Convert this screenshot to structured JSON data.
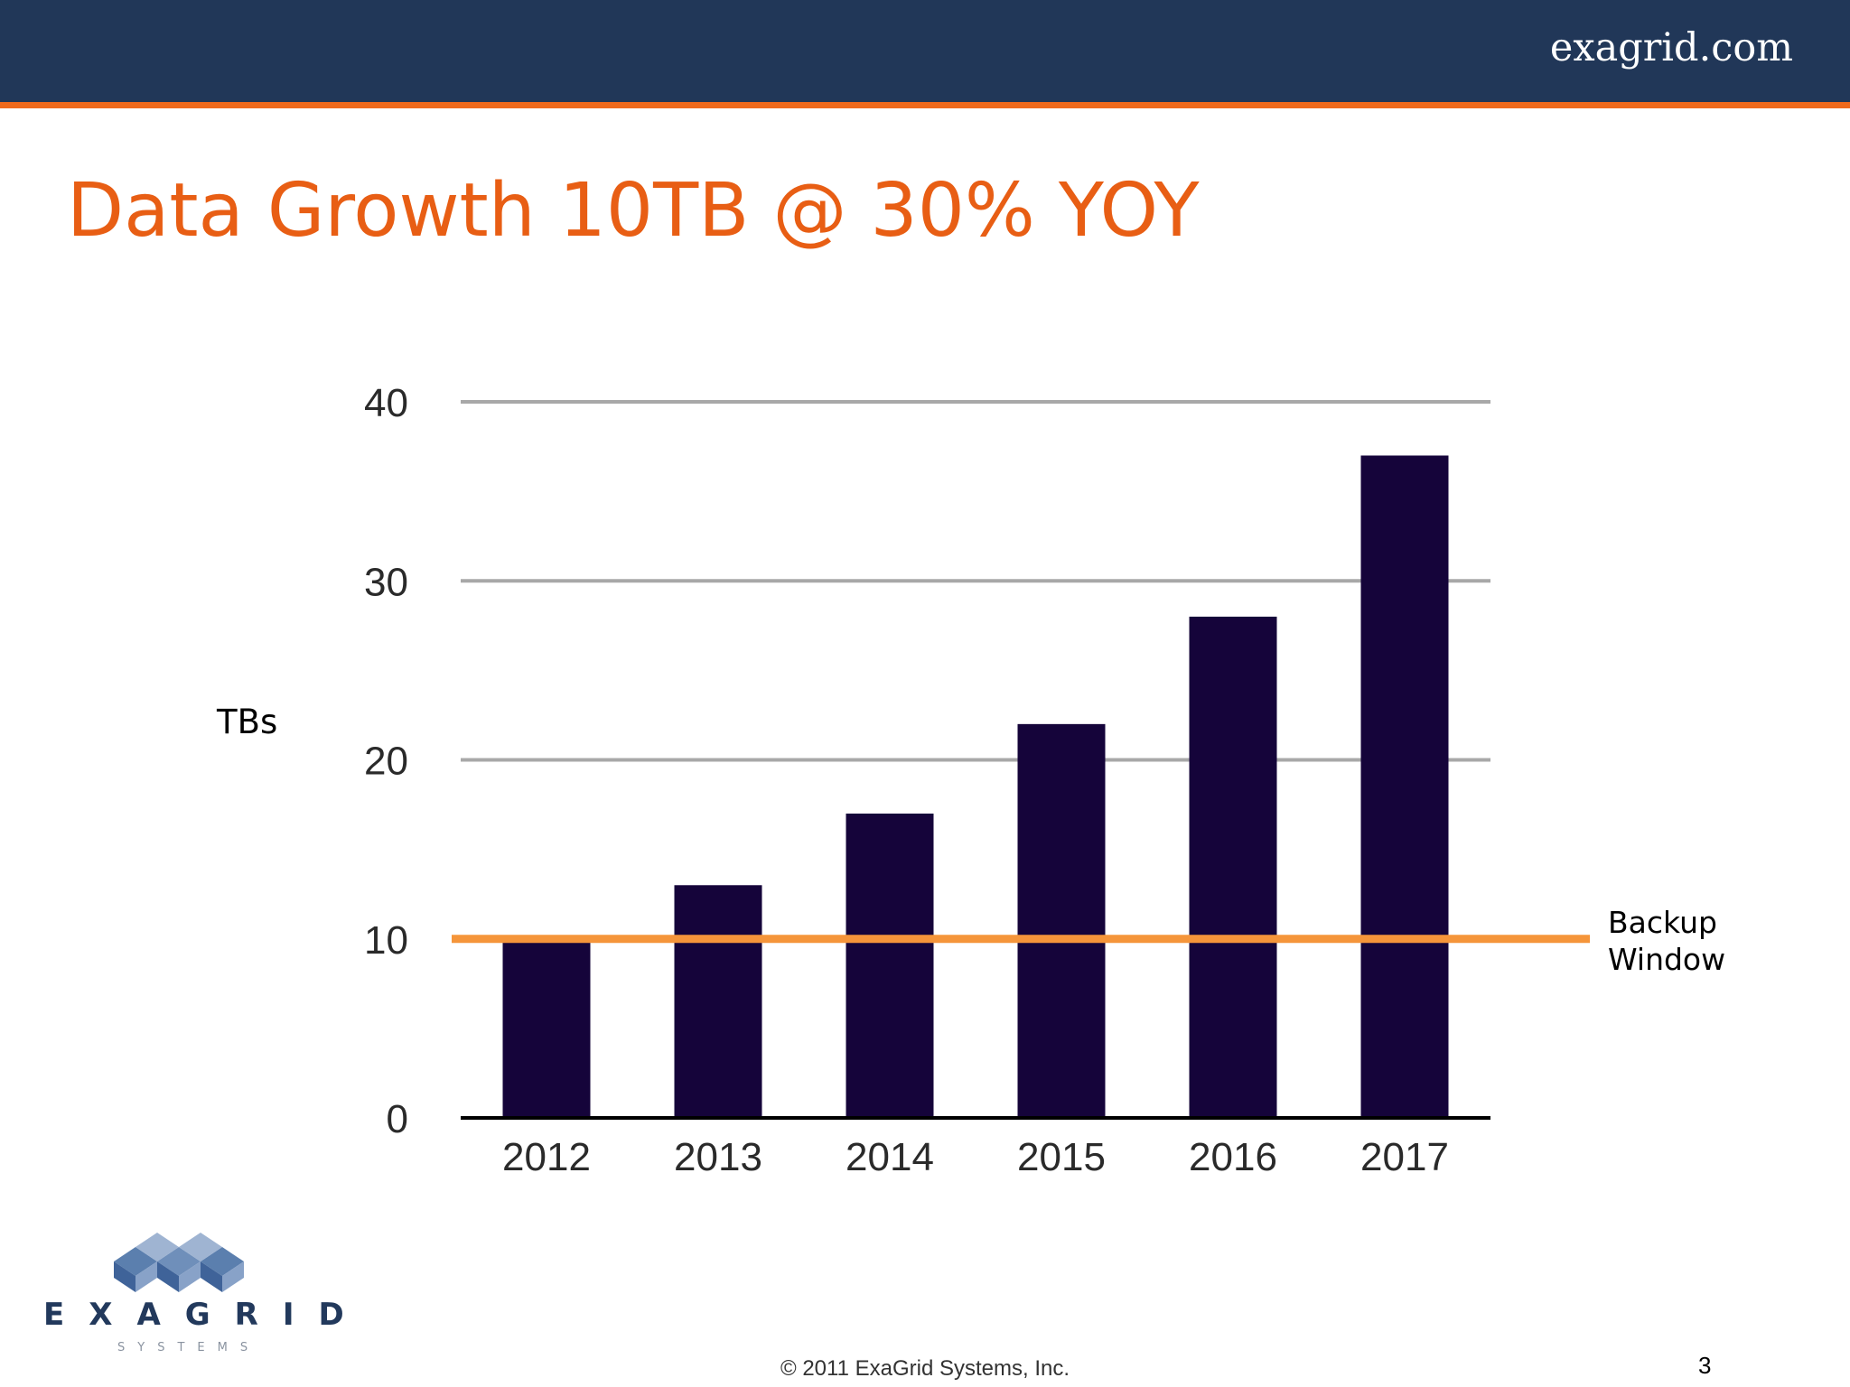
{
  "header": {
    "site": "exagrid.com"
  },
  "slide": {
    "title": "Data Growth 10TB @ 30% YOY"
  },
  "colors": {
    "bar": "#15043a",
    "gridline": "#a8a8a8",
    "axis": "#000000",
    "threshold_line": "#f5953a",
    "header_bg": "#213758",
    "title": "#e85e14"
  },
  "chart_data": {
    "type": "bar",
    "categories": [
      "2012",
      "2013",
      "2014",
      "2015",
      "2016",
      "2017"
    ],
    "values": [
      10,
      13,
      17,
      22,
      28,
      37
    ],
    "ylabel": "TBs",
    "ylim": [
      0,
      40
    ],
    "yticks": [
      0,
      10,
      20,
      30,
      40
    ],
    "grid": true,
    "reference_line": {
      "value": 10,
      "label_line1": "Backup",
      "label_line2": "Window"
    }
  },
  "footer": {
    "logo_word": "EXAGRID",
    "logo_sub": "SYSTEMS",
    "copyright": "© 2011 ExaGrid Systems, Inc.",
    "page": "3"
  }
}
